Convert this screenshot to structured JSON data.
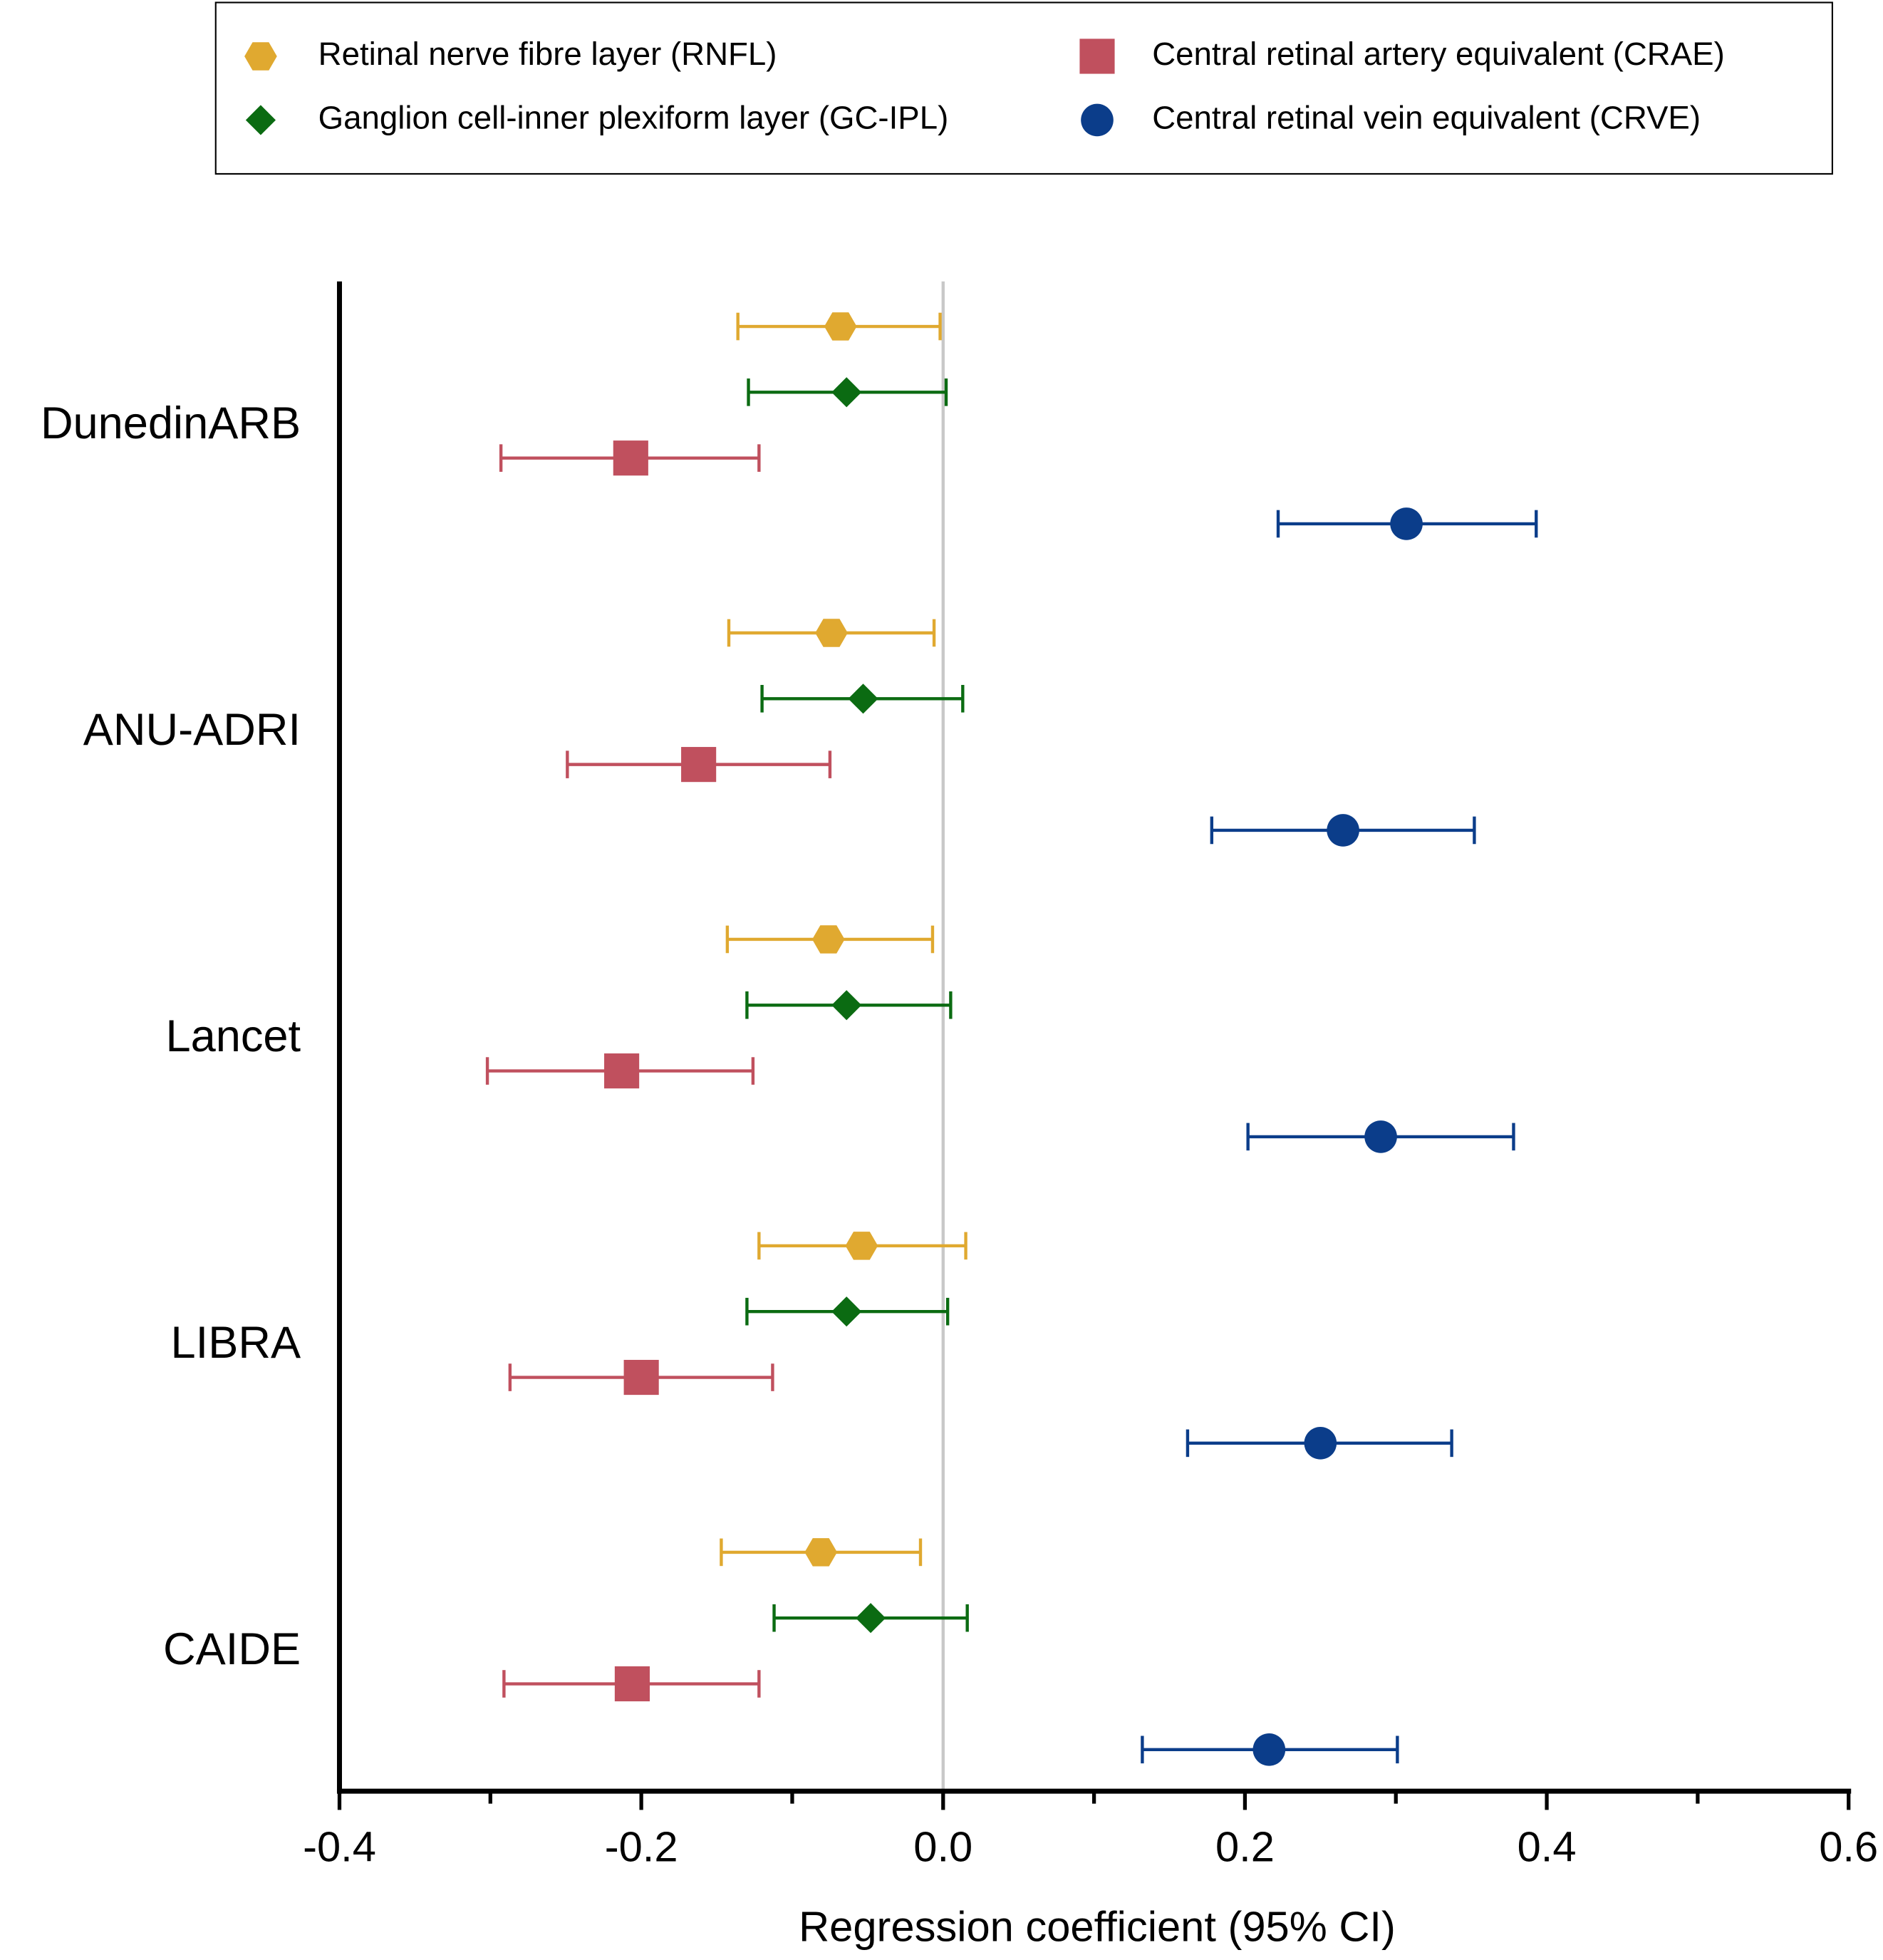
{
  "chart_data": {
    "type": "forest",
    "x_label": "Regression coefficient (95% CI)",
    "categories": [
      "DunedinARB",
      "ANU-ADRI",
      "Lancet",
      "LIBRA",
      "CAIDE"
    ],
    "series": [
      {
        "name": "Retinal nerve fibre layer (RNFL)",
        "color": "#E0A930",
        "marker": "hexagon",
        "values": [
          -0.068,
          -0.074,
          -0.076,
          -0.054,
          -0.081
        ],
        "lower": [
          -0.136,
          -0.142,
          -0.143,
          -0.122,
          -0.147
        ],
        "upper": [
          -0.002,
          -0.006,
          -0.007,
          0.015,
          -0.015
        ]
      },
      {
        "name": "Ganglion cell-inner plexiform layer (GC-IPL)",
        "color": "#0B6B12",
        "marker": "diamond",
        "values": [
          -0.064,
          -0.053,
          -0.064,
          -0.064,
          -0.048
        ],
        "lower": [
          -0.129,
          -0.12,
          -0.13,
          -0.13,
          -0.112
        ],
        "upper": [
          0.002,
          0.013,
          0.005,
          0.003,
          0.016
        ]
      },
      {
        "name": "Central retinal artery equivalent (CRAE)",
        "color": "#C0505E",
        "marker": "square",
        "values": [
          -0.207,
          -0.162,
          -0.213,
          -0.2,
          -0.206
        ],
        "lower": [
          -0.293,
          -0.249,
          -0.302,
          -0.287,
          -0.291
        ],
        "upper": [
          -0.122,
          -0.075,
          -0.126,
          -0.113,
          -0.122
        ]
      },
      {
        "name": "Central retinal vein equivalent (CRVE)",
        "color": "#0B3D8A",
        "marker": "circle",
        "values": [
          0.307,
          0.265,
          0.29,
          0.25,
          0.216
        ],
        "lower": [
          0.222,
          0.178,
          0.202,
          0.162,
          0.132
        ],
        "upper": [
          0.393,
          0.352,
          0.378,
          0.337,
          0.301
        ]
      }
    ],
    "xlim": [
      -0.4,
      0.6
    ],
    "xticks": [
      -0.4,
      -0.2,
      {
        "value": 0,
        "label": "0.0"
      },
      0.2,
      0.4,
      0.6
    ],
    "xminorticks": [
      -0.3,
      -0.1,
      0.1,
      0.3,
      0.5
    ],
    "reference_line": 0,
    "legend": "top"
  }
}
